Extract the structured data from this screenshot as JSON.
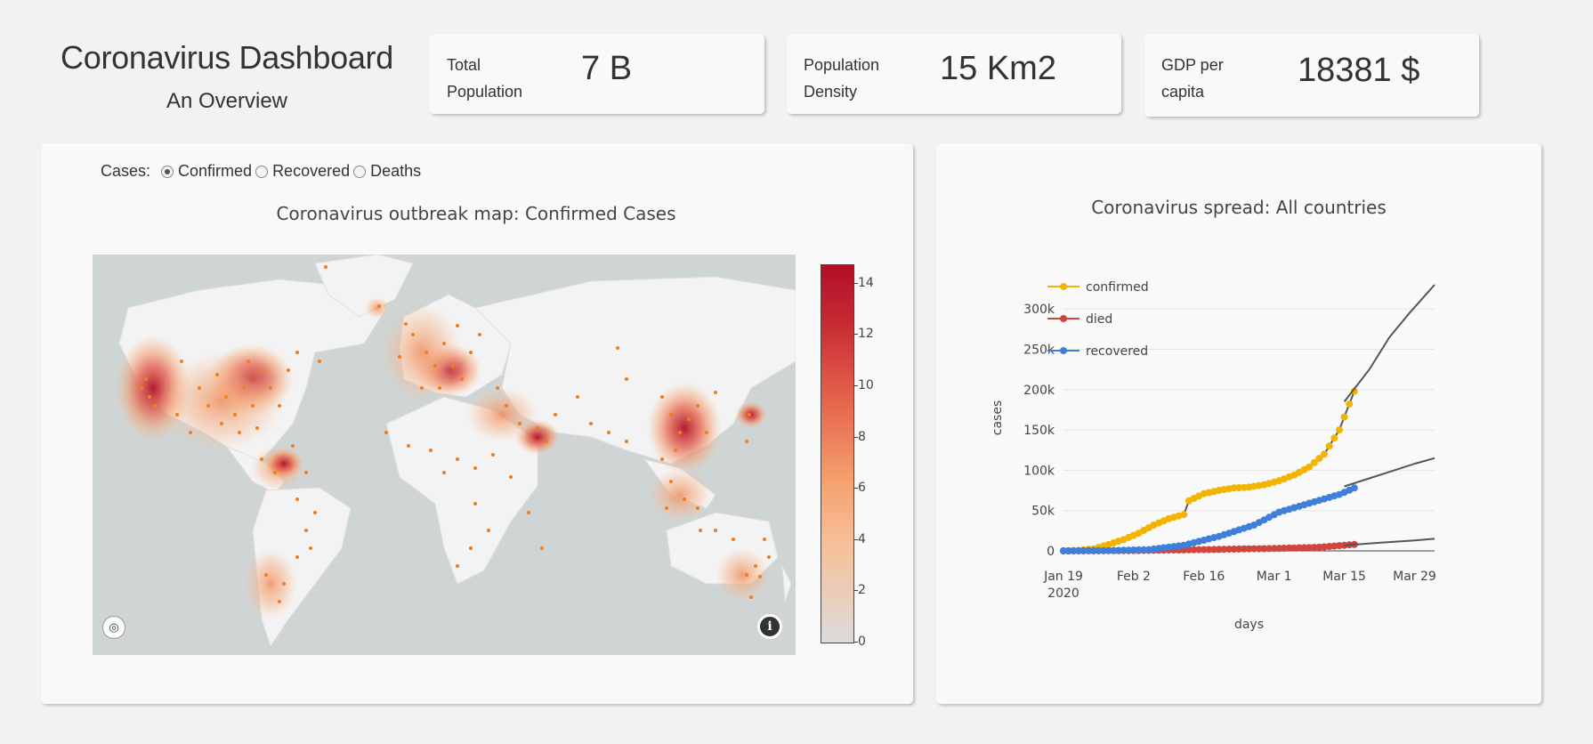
{
  "header": {
    "title": "Coronavirus Dashboard",
    "subtitle": "An Overview"
  },
  "stats": [
    {
      "label": "Total Population",
      "value": "7 B"
    },
    {
      "label": "Population Density",
      "value": "15 Km2"
    },
    {
      "label": "GDP per capita",
      "value": "18381 $"
    }
  ],
  "cases_selector": {
    "label": "Cases:",
    "options": [
      "Confirmed",
      "Recovered",
      "Deaths"
    ],
    "selected": "Confirmed"
  },
  "map": {
    "title": "Coronavirus outbreak map: Confirmed Cases",
    "colorbar": {
      "min": 0,
      "max": 14,
      "ticks": [
        "14",
        "12",
        "10",
        "8",
        "6",
        "4",
        "2",
        "0"
      ]
    },
    "buttons": [
      "mapbox-logo-icon",
      "info-icon"
    ],
    "info_glyph": "i",
    "colors": {
      "ocean": "#cfd4d4",
      "land": "#f2f2f2",
      "dot": "#f07d1e",
      "hot": "#b10f26"
    }
  },
  "chart_data": {
    "type": "line",
    "title": "Coronavirus spread: All countries",
    "xlabel": "days",
    "ylabel": "cases",
    "x_ticks": [
      "Jan 19",
      "Feb 2",
      "Feb 16",
      "Mar 1",
      "Mar 15",
      "Mar 29"
    ],
    "x_tick_year": "2020",
    "y_ticks": [
      "0",
      "50k",
      "100k",
      "150k",
      "200k",
      "250k",
      "300k"
    ],
    "ylim": [
      0,
      330000
    ],
    "x_range": [
      "2020-01-19",
      "2020-04-02"
    ],
    "legend_position": "top-left",
    "series": [
      {
        "name": "confirmed",
        "color": "#f2b400",
        "x": [
          "2020-01-19",
          "2020-01-22",
          "2020-01-25",
          "2020-01-28",
          "2020-01-31",
          "2020-02-03",
          "2020-02-06",
          "2020-02-09",
          "2020-02-12",
          "2020-02-13",
          "2020-02-16",
          "2020-02-19",
          "2020-02-22",
          "2020-02-25",
          "2020-02-28",
          "2020-03-02",
          "2020-03-05",
          "2020-03-08",
          "2020-03-11",
          "2020-03-14",
          "2020-03-17"
        ],
        "values": [
          0,
          600,
          2500,
          8000,
          14000,
          22000,
          32000,
          40000,
          45000,
          62000,
          71000,
          75000,
          78000,
          79000,
          82000,
          87000,
          94000,
          104000,
          120000,
          150000,
          198000
        ]
      },
      {
        "name": "died",
        "color": "#d0453e",
        "x": [
          "2020-01-19",
          "2020-02-01",
          "2020-02-15",
          "2020-03-01",
          "2020-03-10",
          "2020-03-17"
        ],
        "values": [
          0,
          300,
          1500,
          3000,
          4500,
          8000
        ]
      },
      {
        "name": "recovered",
        "color": "#3f7fd9",
        "x": [
          "2020-01-19",
          "2020-01-28",
          "2020-02-05",
          "2020-02-12",
          "2020-02-19",
          "2020-02-26",
          "2020-03-02",
          "2020-03-08",
          "2020-03-14",
          "2020-03-17"
        ],
        "values": [
          0,
          300,
          1500,
          7000,
          18000,
          32000,
          48000,
          59000,
          70000,
          78000
        ]
      },
      {
        "name": "",
        "color": "#555555",
        "role": "projection",
        "x": [
          "2020-03-15",
          "2020-03-20",
          "2020-03-24",
          "2020-03-28",
          "2020-04-02"
        ],
        "values": [
          185000,
          225000,
          265000,
          295000,
          330000
        ]
      },
      {
        "name": "",
        "color": "#555555",
        "role": "projection",
        "x": [
          "2020-03-15",
          "2020-03-20",
          "2020-03-25",
          "2020-03-29",
          "2020-04-02"
        ],
        "values": [
          80000,
          90000,
          100000,
          108000,
          115000
        ]
      },
      {
        "name": "",
        "color": "#555555",
        "role": "projection",
        "x": [
          "2020-03-15",
          "2020-03-22",
          "2020-03-29",
          "2020-04-02"
        ],
        "values": [
          7000,
          10000,
          13000,
          15000
        ]
      }
    ]
  }
}
